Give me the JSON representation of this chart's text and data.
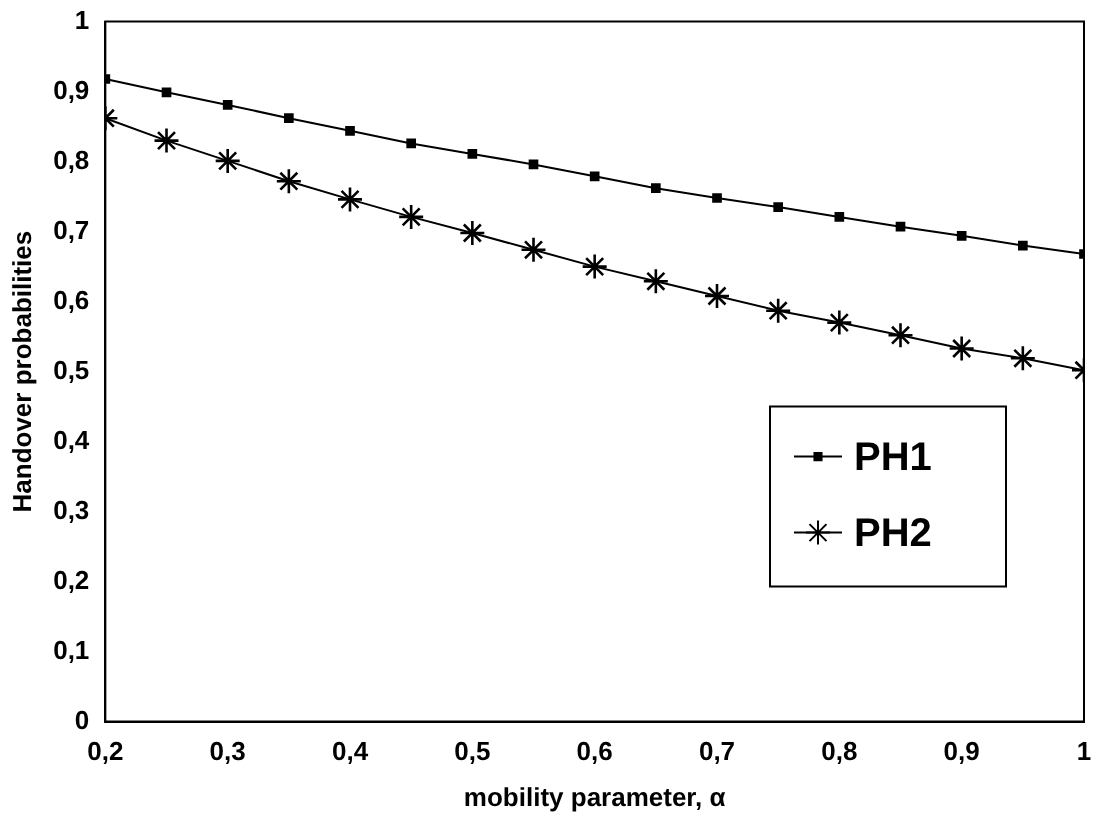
{
  "chart_data": {
    "type": "line",
    "xlabel": "mobility parameter, α",
    "ylabel": "Handover probabilities",
    "x": [
      0.2,
      0.25,
      0.3,
      0.35,
      0.4,
      0.45,
      0.5,
      0.55,
      0.6,
      0.65,
      0.7,
      0.75,
      0.8,
      0.85,
      0.9,
      0.95,
      1
    ],
    "series": [
      {
        "name": "PH1",
        "color": "#000000",
        "marker": "square",
        "values": [
          0.918,
          0.899,
          0.881,
          0.862,
          0.844,
          0.826,
          0.811,
          0.796,
          0.779,
          0.762,
          0.748,
          0.735,
          0.721,
          0.707,
          0.694,
          0.68,
          0.668
        ]
      },
      {
        "name": "PH2",
        "color": "#000000",
        "marker": "cross",
        "values": [
          0.862,
          0.83,
          0.801,
          0.772,
          0.746,
          0.721,
          0.698,
          0.674,
          0.65,
          0.629,
          0.608,
          0.587,
          0.57,
          0.552,
          0.533,
          0.519,
          0.502
        ]
      }
    ],
    "xlim": [
      0.2,
      1
    ],
    "xticks": [
      {
        "value": 0.2,
        "label": "0,2"
      },
      {
        "value": 0.3,
        "label": "0,3"
      },
      {
        "value": 0.4,
        "label": "0,4"
      },
      {
        "value": 0.5,
        "label": "0,5"
      },
      {
        "value": 0.6,
        "label": "0,6"
      },
      {
        "value": 0.7,
        "label": "0,7"
      },
      {
        "value": 0.8,
        "label": "0,8"
      },
      {
        "value": 0.9,
        "label": "0,9"
      },
      1
    ],
    "ylim": [
      0,
      1
    ],
    "yticks": [
      0,
      {
        "value": 0.1,
        "label": "0,1"
      },
      {
        "value": 0.2,
        "label": "0,2"
      },
      {
        "value": 0.3,
        "label": "0,3"
      },
      {
        "value": 0.4,
        "label": "0,4"
      },
      {
        "value": 0.5,
        "label": "0,5"
      },
      {
        "value": 0.6,
        "label": "0,6"
      },
      {
        "value": 0.7,
        "label": "0,7"
      },
      {
        "value": 0.8,
        "label": "0,8"
      },
      {
        "value": 0.9,
        "label": "0,9"
      },
      1
    ],
    "grid": false,
    "legend": "right",
    "line_style": "solid"
  }
}
